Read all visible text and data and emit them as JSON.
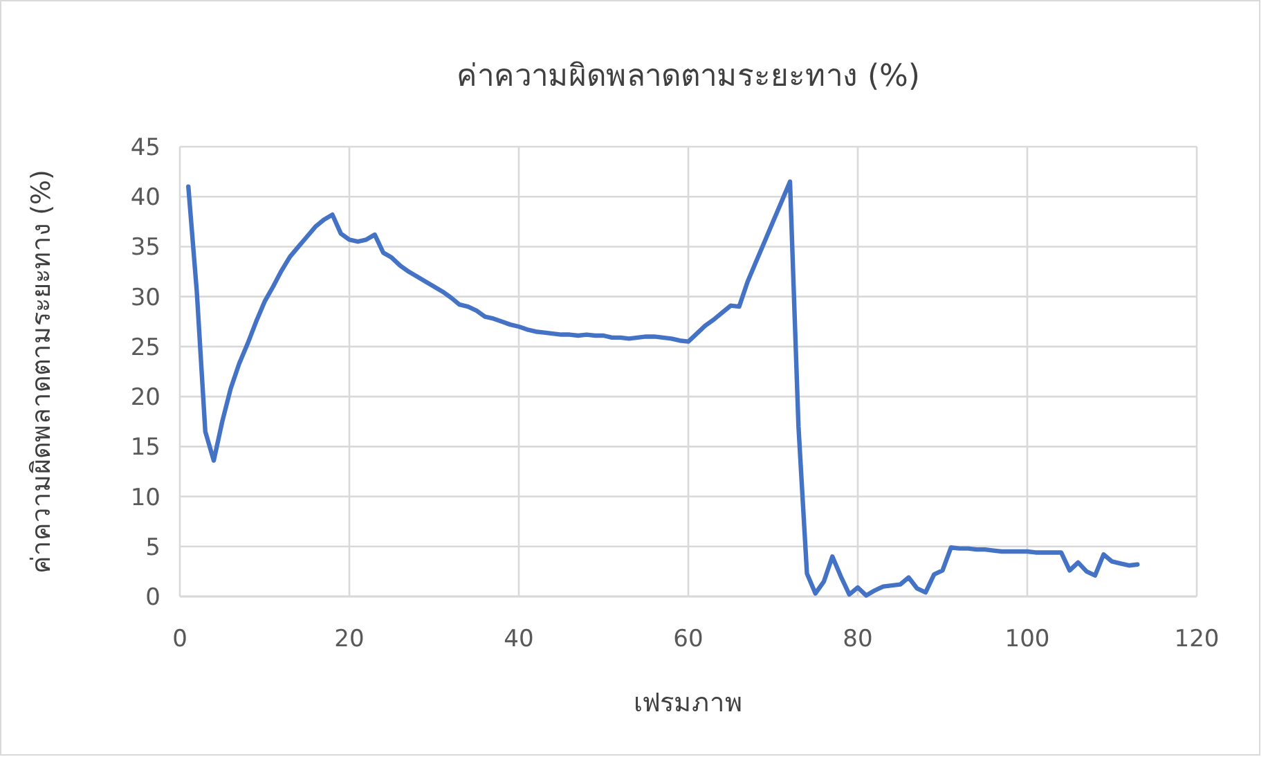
{
  "chart_data": {
    "type": "line",
    "title": "ค่าความผิดพลาดตามระยะทาง (%)",
    "xlabel": "เฟรมภาพ",
    "ylabel": "ค่าความผิดพลาดตามระยะทาง (%)",
    "x": [
      1,
      2,
      3,
      4,
      5,
      6,
      7,
      8,
      9,
      10,
      11,
      12,
      13,
      14,
      15,
      16,
      17,
      18,
      19,
      20,
      21,
      22,
      23,
      24,
      25,
      26,
      27,
      28,
      29,
      30,
      31,
      32,
      33,
      34,
      35,
      36,
      37,
      38,
      39,
      40,
      41,
      42,
      43,
      44,
      45,
      46,
      47,
      48,
      49,
      50,
      51,
      52,
      53,
      54,
      55,
      56,
      57,
      58,
      59,
      60,
      61,
      62,
      63,
      64,
      65,
      66,
      67,
      68,
      69,
      70,
      71,
      72,
      73,
      74,
      75,
      76,
      77,
      78,
      79,
      80,
      81,
      82,
      83,
      84,
      85,
      86,
      87,
      88,
      89,
      90,
      91,
      92,
      93,
      94,
      95,
      96,
      97,
      98,
      99,
      100,
      101,
      102,
      103,
      104,
      105,
      106,
      107,
      108,
      109,
      110,
      111,
      112,
      113
    ],
    "series": [
      {
        "color": "#4472c4",
        "values": [
          41,
          30.5,
          16.5,
          13.6,
          17.5,
          20.8,
          23.3,
          25.3,
          27.5,
          29.5,
          31,
          32.6,
          34,
          35,
          36,
          37,
          37.7,
          38.2,
          36.3,
          35.7,
          35.5,
          35.7,
          36.2,
          34.4,
          33.9,
          33.1,
          32.5,
          32,
          31.5,
          31,
          30.5,
          29.9,
          29.2,
          29,
          28.6,
          28,
          27.8,
          27.5,
          27.2,
          27,
          26.7,
          26.5,
          26.4,
          26.3,
          26.2,
          26.2,
          26.1,
          26.2,
          26.1,
          26.1,
          25.9,
          25.9,
          25.8,
          25.9,
          26,
          26,
          25.9,
          25.8,
          25.6,
          25.5,
          26.3,
          27.1,
          27.7,
          28.4,
          29.1,
          29,
          31.5,
          33.5,
          35.5,
          37.5,
          39.5,
          41.5,
          17,
          2.3,
          0.3,
          1.5,
          4,
          2,
          0.2,
          0.9,
          0.1,
          0.6,
          1,
          1.1,
          1.2,
          1.9,
          0.8,
          0.4,
          2.2,
          2.6,
          4.9,
          4.8,
          4.8,
          4.7,
          4.7,
          4.6,
          4.5,
          4.5,
          4.5,
          4.5,
          4.4,
          4.4,
          4.4,
          4.4,
          2.6,
          3.4,
          2.5,
          2.1,
          4.2,
          3.5,
          3.3,
          3.1,
          3.2
        ]
      }
    ],
    "xlim": [
      0,
      120
    ],
    "xticks": [
      0,
      20,
      40,
      60,
      80,
      100,
      120
    ],
    "ylim": [
      0,
      45
    ],
    "yticks": [
      0,
      5,
      10,
      15,
      20,
      25,
      30,
      35,
      40,
      45
    ],
    "grid": true,
    "marker": "none",
    "line_style": "solid"
  }
}
